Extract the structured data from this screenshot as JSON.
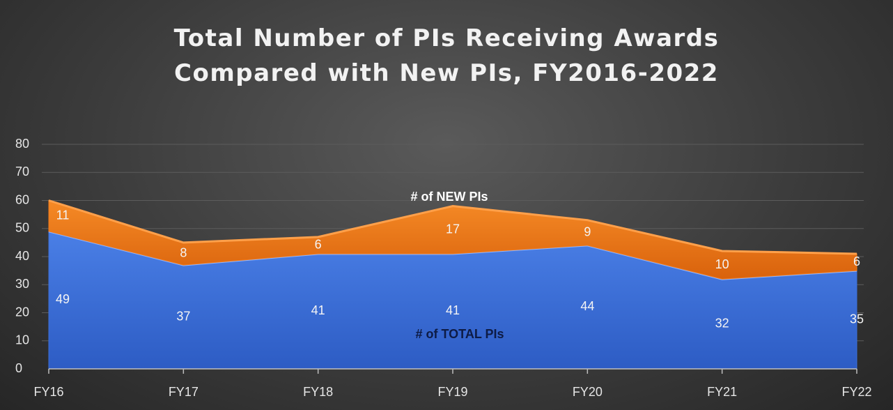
{
  "chart_data": {
    "type": "stacked_area",
    "title": "Total Number of PIs Receiving Awards Compared with New PIs, FY2016-2022",
    "categories": [
      "FY16",
      "FY17",
      "FY18",
      "FY19",
      "FY20",
      "FY21",
      "FY22"
    ],
    "series": [
      {
        "name": "# of TOTAL PIs",
        "color": "#3b6fd9",
        "values": [
          49,
          37,
          41,
          41,
          44,
          32,
          35
        ]
      },
      {
        "name": "# of NEW PIs",
        "color": "#f07818",
        "values": [
          11,
          8,
          6,
          17,
          9,
          10,
          6
        ]
      }
    ],
    "ylim": [
      0,
      80
    ],
    "yticks": [
      0,
      10,
      20,
      30,
      40,
      50,
      60,
      70,
      80
    ],
    "grid": true
  }
}
